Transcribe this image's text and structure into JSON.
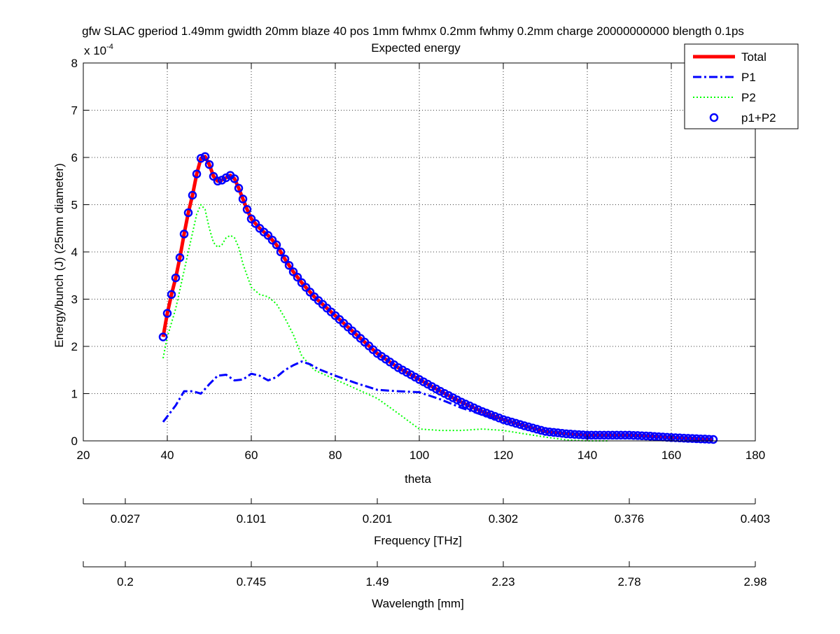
{
  "chart_data": {
    "type": "line",
    "title": "gfw SLAC gperiod 1.49mm gwidth 20mm blaze 40 pos 1mm fwhmx 0.2mm fwhmy 0.2mm charge 20000000000 blength 0.1ps",
    "subtitle": "Expected energy",
    "xlabel": "theta",
    "ylabel": "Energy/bunch (J) (25mm diameter)",
    "y_multiplier": {
      "base": "x 10",
      "exponent": "-4"
    },
    "xlim": [
      20,
      180
    ],
    "ylim": [
      0,
      8
    ],
    "y_scale_factor": 0.0001,
    "xticks": [
      20,
      40,
      60,
      80,
      100,
      120,
      140,
      160,
      180
    ],
    "yticks": [
      0,
      1,
      2,
      3,
      4,
      5,
      6,
      7,
      8
    ],
    "grid": true,
    "legend_position": "top-right",
    "series": [
      {
        "name": "Total",
        "style": "solid",
        "color": "#ff0000",
        "x": [
          39,
          40,
          41,
          42,
          43,
          44,
          45,
          46,
          47,
          48,
          49,
          50,
          51,
          52,
          53,
          54,
          55,
          56,
          57,
          58,
          59,
          60,
          61,
          62,
          63,
          64,
          65,
          66,
          67,
          68,
          70,
          72,
          75,
          80,
          85,
          90,
          95,
          100,
          105,
          110,
          115,
          120,
          125,
          130,
          135,
          140,
          145,
          150,
          155,
          160,
          165,
          170
        ],
        "y": [
          2.2,
          2.7,
          3.1,
          3.45,
          3.88,
          4.38,
          4.83,
          5.2,
          5.65,
          5.98,
          6.02,
          5.85,
          5.6,
          5.5,
          5.52,
          5.57,
          5.62,
          5.55,
          5.35,
          5.12,
          4.9,
          4.7,
          4.6,
          4.5,
          4.42,
          4.35,
          4.25,
          4.15,
          4.0,
          3.85,
          3.58,
          3.35,
          3.05,
          2.65,
          2.25,
          1.85,
          1.55,
          1.3,
          1.05,
          0.82,
          0.62,
          0.45,
          0.32,
          0.2,
          0.15,
          0.12,
          0.12,
          0.12,
          0.1,
          0.07,
          0.05,
          0.03
        ]
      },
      {
        "name": "P1",
        "style": "dashdot",
        "color": "#0000ff",
        "x": [
          39,
          42,
          44,
          46,
          48,
          50,
          52,
          54,
          56,
          58,
          60,
          62,
          64,
          66,
          68,
          70,
          72,
          74,
          76,
          80,
          85,
          90,
          95,
          100,
          105,
          110,
          115,
          120,
          125
        ],
        "y": [
          0.4,
          0.75,
          1.05,
          1.05,
          1.0,
          1.2,
          1.38,
          1.4,
          1.28,
          1.3,
          1.42,
          1.38,
          1.28,
          1.35,
          1.5,
          1.6,
          1.68,
          1.62,
          1.52,
          1.38,
          1.22,
          1.08,
          1.05,
          1.03,
          0.88,
          0.7,
          0.55,
          0.42,
          0.35
        ]
      },
      {
        "name": "P2",
        "style": "dotted",
        "color": "#00ff00",
        "x": [
          39,
          40,
          41,
          42,
          43,
          44,
          45,
          46,
          47,
          48,
          49,
          50,
          51,
          52,
          53,
          54,
          55,
          56,
          57,
          58,
          60,
          62,
          64,
          66,
          68,
          70,
          72,
          75,
          80,
          85,
          90,
          95,
          100,
          105,
          110,
          115,
          120,
          125,
          130,
          135,
          140,
          145
        ],
        "y": [
          1.75,
          2.2,
          2.5,
          2.8,
          3.2,
          3.6,
          4.0,
          4.4,
          4.8,
          5.0,
          4.9,
          4.5,
          4.2,
          4.1,
          4.15,
          4.3,
          4.35,
          4.3,
          4.1,
          3.75,
          3.25,
          3.1,
          3.05,
          2.9,
          2.6,
          2.25,
          1.8,
          1.5,
          1.3,
          1.1,
          0.9,
          0.58,
          0.25,
          0.22,
          0.22,
          0.25,
          0.22,
          0.15,
          0.08,
          0.02,
          0.0,
          0.0
        ]
      },
      {
        "name": "p1+P2",
        "style": "circles",
        "color": "#0000ff",
        "x_start": 39,
        "x_end": 170,
        "x_step": 1,
        "note": "markers follow the Total curve"
      }
    ],
    "secondary_axes": [
      {
        "label": "Frequency [THz]",
        "tick_labels": [
          "0.027",
          "0.101",
          "0.201",
          "0.302",
          "0.376",
          "0.403"
        ],
        "tick_theta": [
          30,
          60,
          90,
          120,
          150,
          180
        ]
      },
      {
        "label": "Wavelength [mm]",
        "tick_labels": [
          "0.2",
          "0.745",
          "1.49",
          "2.23",
          "2.78",
          "2.98"
        ],
        "tick_theta": [
          30,
          60,
          90,
          120,
          150,
          180
        ]
      }
    ]
  }
}
